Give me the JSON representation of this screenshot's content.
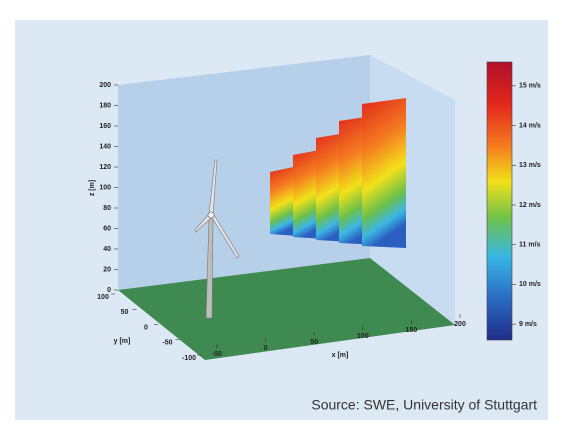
{
  "chart_data": {
    "type": "wind-field-3d",
    "zlabel": "z [m]",
    "ylabel": "y [m]",
    "xlabel": "x [m]",
    "zlim": [
      0,
      200
    ],
    "zticks": [
      0,
      20,
      40,
      60,
      80,
      100,
      120,
      140,
      160,
      180,
      200
    ],
    "ylim": [
      -100,
      100
    ],
    "yticks": [
      100,
      50,
      0,
      -50,
      -100
    ],
    "xlim": [
      -50,
      200
    ],
    "xticks": [
      -50,
      0,
      50,
      100,
      150,
      200
    ],
    "clim": [
      8.6,
      15.6
    ],
    "cticks": [
      {
        "value": 15,
        "label": "15 m/s"
      },
      {
        "value": 14,
        "label": "14 m/s"
      },
      {
        "value": 13,
        "label": "13 m/s"
      },
      {
        "value": 12,
        "label": "12 m/s"
      },
      {
        "value": 11,
        "label": "11 m/s"
      },
      {
        "value": 10,
        "label": "10 m/s"
      },
      {
        "value": 9,
        "label": "9 m/s"
      }
    ]
  },
  "source": "Source: SWE, University of Stuttgart"
}
